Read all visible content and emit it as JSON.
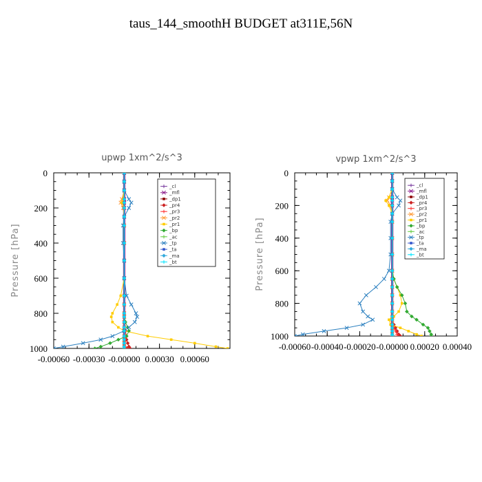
{
  "title": "taus_144_smoothH  BUDGET at311E,56N",
  "chart_data": [
    {
      "type": "line",
      "title": "upwp   1xm^2/s^3",
      "ylabel": "Pressure [hPa]",
      "xlabel": "",
      "xlim": [
        -0.0006,
        0.0009
      ],
      "ylim": [
        1000,
        0
      ],
      "y_ticks": [
        0,
        200,
        400,
        600,
        800,
        1000
      ],
      "y_tick_labels": [
        "0",
        "200",
        "400",
        "600",
        "800",
        "1000"
      ],
      "x_ticks": [
        -0.0006,
        -0.0003,
        0.0,
        0.0003,
        0.0006
      ],
      "x_tick_labels": [
        "-0.00060",
        "-0.00030",
        "-0.00000",
        "0.00030",
        "0.00060"
      ],
      "grid": false,
      "legend_position": "top-right",
      "y": [
        0,
        50,
        100,
        150,
        170,
        200,
        250,
        300,
        400,
        500,
        600,
        700,
        750,
        800,
        820,
        850,
        880,
        900,
        930,
        950,
        970,
        990,
        1000
      ],
      "series": [
        {
          "name": "_cl",
          "color": "#7b3fa0",
          "values": [
            0,
            0,
            0,
            0,
            0,
            0,
            0,
            0,
            0,
            0,
            0,
            0,
            0,
            0,
            0,
            0,
            0,
            0,
            0,
            0,
            0,
            0,
            0
          ]
        },
        {
          "name": "_mfl",
          "color": "#8b1a8b",
          "values": [
            0,
            0,
            0,
            0,
            0,
            0,
            0,
            0,
            0,
            0,
            0,
            0,
            0,
            0,
            0,
            0,
            0,
            0,
            0,
            0,
            0,
            0,
            0
          ]
        },
        {
          "name": "_dp1",
          "color": "#8b0000",
          "values": [
            0,
            0,
            0,
            0,
            0,
            0,
            0,
            0,
            0,
            0,
            0,
            0,
            0,
            0,
            0,
            0,
            0,
            0,
            0,
            0,
            0,
            0,
            2e-05
          ]
        },
        {
          "name": "_pr4",
          "color": "#cc2222",
          "values": [
            0,
            0,
            0,
            0,
            0,
            0,
            0,
            0,
            0,
            0,
            0,
            0,
            0,
            0,
            0,
            0,
            0,
            1e-05,
            2e-05,
            2e-05,
            3e-05,
            4e-05,
            5e-05
          ]
        },
        {
          "name": "_pr3",
          "color": "#ff3333",
          "values": [
            0,
            0,
            0,
            0,
            0,
            0,
            0,
            0,
            0,
            0,
            0,
            0,
            0,
            0,
            0,
            0,
            0,
            0,
            0,
            0,
            0,
            1e-05,
            2e-05
          ]
        },
        {
          "name": "_pr2",
          "color": "#ff9933",
          "values": [
            0,
            0,
            0,
            -2e-05,
            -3e-05,
            -1e-05,
            0,
            0,
            0,
            0,
            0,
            0,
            0,
            0,
            0,
            0,
            0,
            0,
            0,
            0,
            0,
            0,
            0
          ]
        },
        {
          "name": "_pr1",
          "color": "#ffcc00",
          "values": [
            0,
            0,
            0,
            -1e-05,
            -2e-05,
            0,
            0,
            0,
            0,
            0,
            0,
            -3e-05,
            -6e-05,
            -0.0001,
            -0.00011,
            -0.0001,
            -5e-05,
            0,
            0.0002,
            0.0004,
            0.0006,
            0.00078,
            0.00088
          ]
        },
        {
          "name": "_bp",
          "color": "#33aa33",
          "values": [
            0,
            0,
            0,
            0,
            0,
            0,
            0,
            0,
            0,
            0,
            0,
            0,
            0,
            0,
            0,
            1e-05,
            3e-05,
            4e-05,
            2e-05,
            -5e-05,
            -0.00012,
            -0.0002,
            -0.00025
          ]
        },
        {
          "name": "_ac",
          "color": "#66cc44",
          "values": [
            0,
            0,
            0,
            0,
            0,
            0,
            0,
            0,
            0,
            0,
            0,
            0,
            0,
            0,
            0,
            0,
            0,
            0,
            0,
            0,
            0,
            0,
            0
          ]
        },
        {
          "name": "_tp",
          "color": "#2a7fbf",
          "values": [
            0,
            0,
            0,
            4e-05,
            6e-05,
            4e-05,
            0,
            -1e-05,
            -1e-05,
            0,
            0,
            2e-05,
            6e-05,
            0.0001,
            0.00011,
            9e-05,
            4e-05,
            0,
            -0.0001,
            -0.0002,
            -0.00035,
            -0.00052,
            -0.0006
          ]
        },
        {
          "name": "_ta",
          "color": "#3355cc",
          "values": [
            0,
            0,
            0,
            0,
            0,
            0,
            0,
            0,
            0,
            0,
            0,
            0,
            0,
            0,
            0,
            0,
            0,
            0,
            0,
            0,
            0,
            0,
            0
          ]
        },
        {
          "name": "_ma",
          "color": "#33aadd",
          "values": [
            0,
            0,
            0,
            0,
            0,
            0,
            0,
            0,
            0,
            0,
            0,
            0,
            0,
            0,
            0,
            0,
            0,
            0,
            0,
            0,
            0,
            0,
            0
          ]
        },
        {
          "name": "_bt",
          "color": "#00e5ff",
          "values": [
            0,
            0,
            0,
            0,
            0,
            0,
            0,
            0,
            0,
            0,
            0,
            0,
            0,
            0,
            0,
            0,
            0,
            0,
            0,
            0,
            0,
            0,
            0
          ]
        }
      ]
    },
    {
      "type": "line",
      "title": "vpwp   1xm^2/s^3",
      "ylabel": "Pressure [hPa]",
      "xlabel": "",
      "xlim": [
        -0.0006,
        0.0004
      ],
      "ylim": [
        1000,
        0
      ],
      "y_ticks": [
        0,
        200,
        400,
        600,
        800,
        1000
      ],
      "y_tick_labels": [
        "0",
        "200",
        "400",
        "600",
        "800",
        "1000"
      ],
      "x_ticks": [
        -0.0006,
        -0.0004,
        -0.0002,
        0.0,
        0.0002,
        0.0004
      ],
      "x_tick_labels": [
        "-0.00060",
        "-0.00040",
        "-0.00020",
        "-0.00000",
        "0.00020",
        "0.00040"
      ],
      "grid": false,
      "legend_position": "top-right",
      "y": [
        0,
        50,
        100,
        150,
        170,
        200,
        250,
        300,
        400,
        500,
        600,
        650,
        700,
        750,
        800,
        850,
        880,
        900,
        930,
        950,
        970,
        990,
        1000
      ],
      "series": [
        {
          "name": "_cl",
          "color": "#7b3fa0",
          "values": [
            0,
            0,
            0,
            0,
            0,
            0,
            0,
            0,
            0,
            0,
            0,
            0,
            0,
            0,
            0,
            0,
            0,
            0,
            0,
            0,
            0,
            0,
            0
          ]
        },
        {
          "name": "_mfl",
          "color": "#8b1a8b",
          "values": [
            0,
            0,
            0,
            0,
            0,
            0,
            0,
            0,
            0,
            0,
            0,
            0,
            0,
            0,
            0,
            0,
            0,
            0,
            0,
            0,
            0,
            0,
            0
          ]
        },
        {
          "name": "_dp1",
          "color": "#8b0000",
          "values": [
            0,
            0,
            0,
            0,
            0,
            0,
            0,
            0,
            0,
            0,
            0,
            0,
            0,
            0,
            0,
            0,
            0,
            0,
            0,
            0,
            0,
            0,
            0
          ]
        },
        {
          "name": "_pr4",
          "color": "#cc2222",
          "values": [
            0,
            0,
            0,
            0,
            0,
            0,
            0,
            0,
            0,
            0,
            0,
            0,
            0,
            0,
            0,
            0,
            0,
            0,
            1e-05,
            2e-05,
            3e-05,
            4e-05,
            5e-05
          ]
        },
        {
          "name": "_pr3",
          "color": "#ff3333",
          "values": [
            0,
            0,
            0,
            0,
            0,
            0,
            0,
            0,
            0,
            0,
            0,
            0,
            0,
            0,
            0,
            0,
            0,
            0,
            0,
            1e-05,
            2e-05,
            3e-05,
            3e-05
          ]
        },
        {
          "name": "_pr2",
          "color": "#ff9933",
          "values": [
            0,
            0,
            0,
            -2e-05,
            -3e-05,
            -1e-05,
            0,
            0,
            0,
            0,
            0,
            0,
            0,
            0,
            0,
            0,
            0,
            0,
            0,
            0,
            0,
            0,
            0
          ]
        },
        {
          "name": "_pr1",
          "color": "#ffcc00",
          "values": [
            0,
            0,
            0,
            -2e-05,
            -4e-05,
            -2e-05,
            0,
            0,
            0,
            0,
            0,
            1e-05,
            3e-05,
            5e-05,
            6e-05,
            4e-05,
            1e-05,
            -2e-05,
            -1e-05,
            5e-05,
            0.0001,
            0.00015,
            0.00018
          ]
        },
        {
          "name": "_bp",
          "color": "#33aa33",
          "values": [
            0,
            0,
            0,
            0,
            0,
            0,
            0,
            0,
            0,
            0,
            0,
            1e-05,
            3e-05,
            6e-05,
            8e-05,
            9e-05,
            0.00012,
            0.00015,
            0.00019,
            0.00022,
            0.00023,
            0.00024,
            0.00024
          ]
        },
        {
          "name": "_ac",
          "color": "#66cc44",
          "values": [
            0,
            0,
            0,
            0,
            0,
            0,
            0,
            0,
            0,
            0,
            0,
            0,
            0,
            0,
            0,
            0,
            0,
            0,
            0,
            0,
            0,
            0,
            0
          ]
        },
        {
          "name": "_tp",
          "color": "#2a7fbf",
          "values": [
            0,
            0,
            0,
            3e-05,
            5e-05,
            4e-05,
            0,
            -1e-05,
            -1e-05,
            -1e-05,
            -2e-05,
            -5e-05,
            -0.0001,
            -0.00016,
            -0.0002,
            -0.00018,
            -0.00015,
            -0.00012,
            -0.00018,
            -0.00028,
            -0.00042,
            -0.00055,
            -0.0006
          ]
        },
        {
          "name": "_ta",
          "color": "#3355cc",
          "values": [
            0,
            0,
            0,
            0,
            0,
            0,
            0,
            0,
            0,
            0,
            0,
            0,
            0,
            0,
            0,
            0,
            0,
            0,
            0,
            0,
            0,
            0,
            0
          ]
        },
        {
          "name": "_ma",
          "color": "#33aadd",
          "values": [
            0,
            0,
            0,
            0,
            0,
            0,
            0,
            0,
            0,
            0,
            0,
            0,
            0,
            0,
            0,
            0,
            0,
            0,
            0,
            0,
            0,
            0,
            0
          ]
        },
        {
          "name": "_bt",
          "color": "#00e5ff",
          "values": [
            0,
            0,
            0,
            0,
            0,
            0,
            0,
            0,
            0,
            0,
            0,
            0,
            0,
            0,
            0,
            0,
            0,
            0,
            0,
            0,
            0,
            0,
            0
          ]
        }
      ]
    }
  ]
}
